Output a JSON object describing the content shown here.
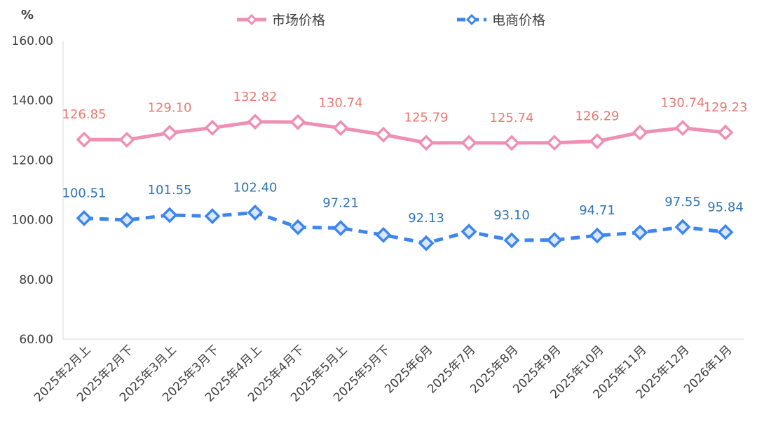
{
  "chart_data": {
    "type": "line",
    "unit": "%",
    "categories": [
      "2025年2月上",
      "2025年2月下",
      "2025年3月上",
      "2025年3月下",
      "2025年4月上",
      "2025年4月下",
      "2025年5月上",
      "2025年5月下",
      "2025年6月",
      "2025年7月",
      "2025年8月",
      "2025年9月",
      "2025年10月",
      "2025年11月",
      "2025年12月",
      "2026年1月"
    ],
    "ylim": [
      60,
      160
    ],
    "yticks": [
      "60.00",
      "80.00",
      "100.00",
      "120.00",
      "140.00",
      "160.00"
    ],
    "series": [
      {
        "name": "市场价格",
        "color": "#EE8FB4",
        "label_color": "#E8796F",
        "line_style": "solid",
        "values": [
          126.85,
          126.8,
          129.1,
          130.8,
          132.82,
          132.7,
          130.74,
          128.5,
          125.79,
          125.75,
          125.74,
          125.8,
          126.29,
          129.2,
          130.74,
          129.23
        ],
        "labels": [
          "126.85",
          "",
          "129.10",
          "",
          "132.82",
          "",
          "130.74",
          "",
          "125.79",
          "",
          "125.74",
          "",
          "126.29",
          "",
          "130.74",
          "129.23"
        ]
      },
      {
        "name": "电商价格",
        "color": "#3D86F0",
        "label_color": "#2E75B6",
        "line_style": "dashed",
        "values": [
          100.51,
          99.9,
          101.55,
          101.2,
          102.4,
          97.5,
          97.21,
          94.9,
          92.13,
          96.0,
          93.1,
          93.2,
          94.71,
          95.7,
          97.55,
          95.84
        ],
        "labels": [
          "100.51",
          "",
          "101.55",
          "",
          "102.40",
          "",
          "97.21",
          "",
          "92.13",
          "",
          "93.10",
          "",
          "94.71",
          "",
          "97.55",
          "95.84"
        ]
      }
    ]
  }
}
